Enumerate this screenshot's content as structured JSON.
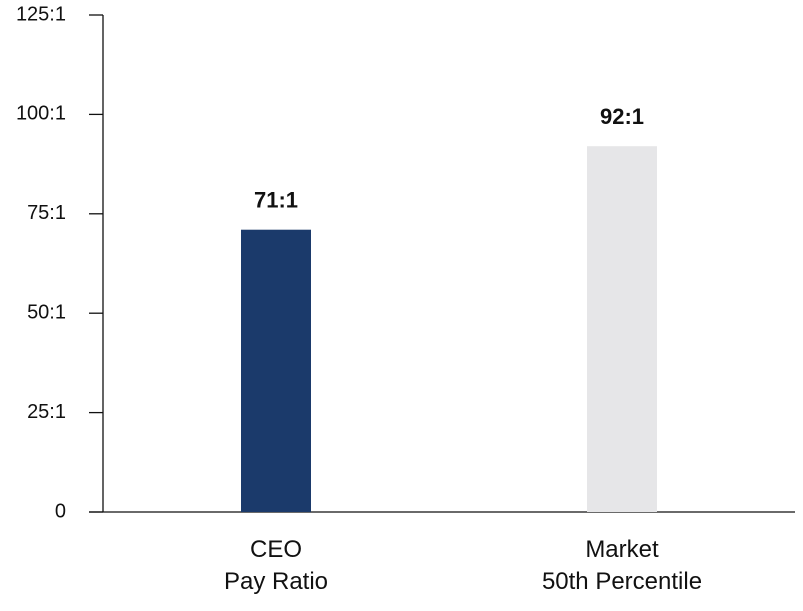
{
  "chart_data": {
    "type": "bar",
    "categories": [
      "CEO\nPay Ratio",
      "Market\n50th Percentile"
    ],
    "values": [
      71,
      92
    ],
    "value_labels": [
      "71:1",
      "92:1"
    ],
    "colors": [
      "#1b3a6b",
      "#e6e6e8"
    ],
    "ylim": [
      0,
      125
    ],
    "yticks": [
      0,
      {
        "value": 25,
        "label": "25:1"
      },
      {
        "value": 50,
        "label": "50:1"
      },
      {
        "value": 75,
        "label": "75:1"
      },
      {
        "value": 100,
        "label": "100:1"
      },
      {
        "value": 125,
        "label": "125:1"
      }
    ],
    "grid": false
  }
}
